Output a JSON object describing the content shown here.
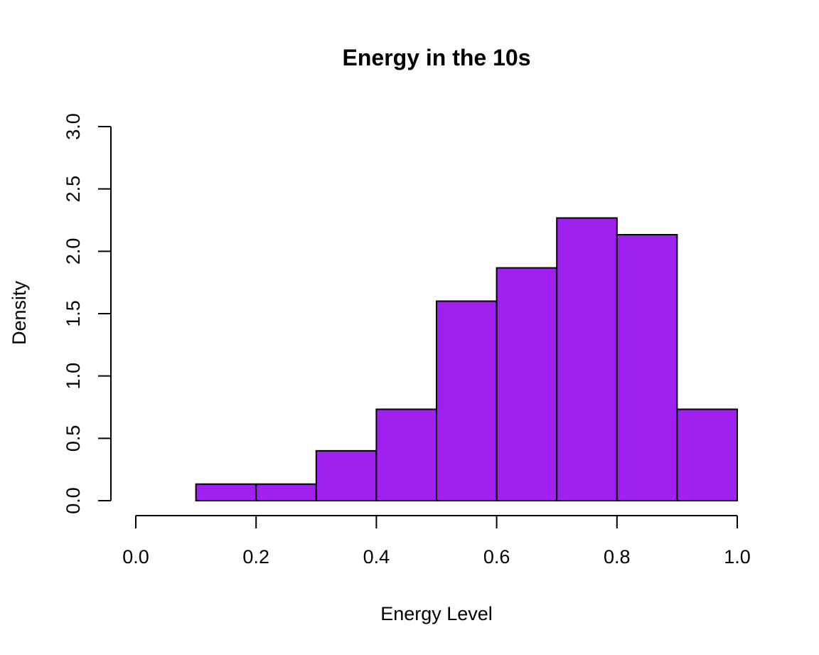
{
  "chart_data": {
    "type": "bar",
    "title": "Energy in the 10s",
    "xlabel": "Energy Level",
    "ylabel": "Density",
    "bin_edges": [
      0.1,
      0.2,
      0.3,
      0.4,
      0.5,
      0.6,
      0.7,
      0.8,
      0.9,
      1.0
    ],
    "values": [
      0.133,
      0.133,
      0.4,
      0.733,
      1.6,
      1.867,
      2.267,
      2.133,
      0.733
    ],
    "xlim": [
      0.0,
      1.0
    ],
    "ylim": [
      0.0,
      3.0
    ],
    "x_ticks": [
      "0.0",
      "0.2",
      "0.4",
      "0.6",
      "0.8",
      "1.0"
    ],
    "y_ticks": [
      "0.0",
      "0.5",
      "1.0",
      "1.5",
      "2.0",
      "2.5",
      "3.0"
    ],
    "bar_color": "#A020F0",
    "grid": false
  }
}
